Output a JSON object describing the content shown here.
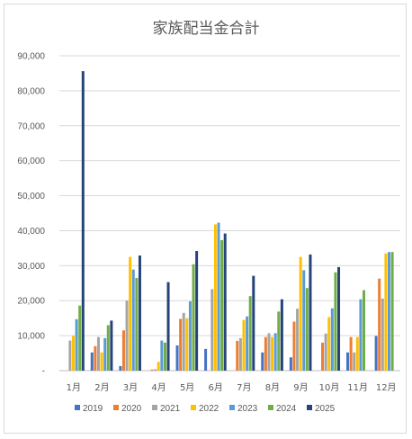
{
  "chart_data": {
    "type": "bar",
    "title": "家族配当金合計",
    "xlabel": "",
    "ylabel": "",
    "ylim": [
      0,
      90000
    ],
    "yticks": [
      0,
      10000,
      20000,
      30000,
      40000,
      50000,
      60000,
      70000,
      80000,
      90000
    ],
    "ytick_labels": [
      "-",
      "10,000",
      "20,000",
      "30,000",
      "40,000",
      "50,000",
      "60,000",
      "70,000",
      "80,000",
      "90,000"
    ],
    "grid": true,
    "legend_position": "bottom",
    "categories": [
      "1月",
      "2月",
      "3月",
      "4月",
      "5月",
      "6月",
      "7月",
      "8月",
      "9月",
      "10月",
      "11月",
      "12月"
    ],
    "series": [
      {
        "name": "2019",
        "color": "#4472c4",
        "values": [
          0,
          5200,
          1300,
          0,
          7200,
          6200,
          0,
          5200,
          3800,
          0,
          5200,
          9900
        ]
      },
      {
        "name": "2020",
        "color": "#ed7d31",
        "values": [
          0,
          7000,
          11500,
          300,
          14800,
          0,
          8500,
          9600,
          14000,
          8000,
          9600,
          26300
        ]
      },
      {
        "name": "2021",
        "color": "#a5a5a5",
        "values": [
          8600,
          9600,
          20000,
          400,
          16500,
          23300,
          9300,
          10700,
          17700,
          10600,
          5200,
          20600
        ]
      },
      {
        "name": "2022",
        "color": "#ffc000",
        "values": [
          9900,
          5200,
          32500,
          2500,
          15000,
          41800,
          14500,
          9600,
          32500,
          15300,
          9600,
          33500
        ]
      },
      {
        "name": "2023",
        "color": "#5b9bd5",
        "values": [
          14700,
          9300,
          28900,
          8600,
          19800,
          42300,
          15500,
          10700,
          28700,
          17800,
          20400,
          33900
        ]
      },
      {
        "name": "2024",
        "color": "#70ad47",
        "values": [
          18600,
          13000,
          26500,
          8000,
          30400,
          37300,
          21300,
          16900,
          23600,
          28100,
          23000,
          33900
        ]
      },
      {
        "name": "2025",
        "color": "#264478",
        "values": [
          85600,
          14300,
          32900,
          25300,
          34200,
          39200,
          27100,
          20400,
          33200,
          29600,
          0,
          0
        ]
      }
    ]
  }
}
